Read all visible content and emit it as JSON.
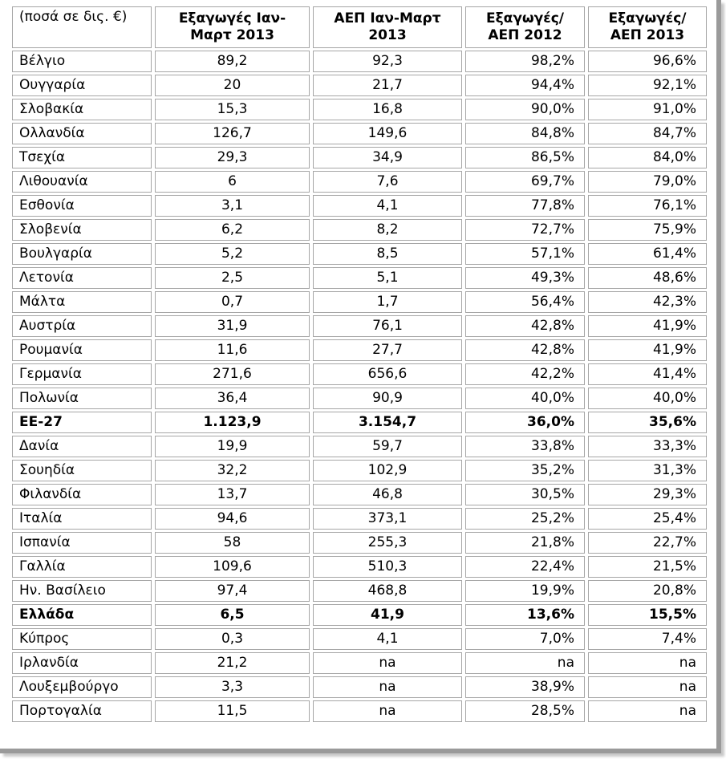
{
  "table": {
    "headers": [
      "(ποσά σε δις. €)",
      "Εξαγωγές Ιαν-Μαρτ 2013",
      "ΑΕΠ Ιαν-Μαρτ 2013",
      "Εξαγωγές/ ΑΕΠ 2012",
      "Εξαγωγές/ ΑΕΠ 2013"
    ],
    "rows": [
      {
        "name": "Βέλγιο",
        "exports": "89,2",
        "gdp": "92,3",
        "ratio2012": "98,2%",
        "ratio2013": "96,6%",
        "bold": false
      },
      {
        "name": "Ουγγαρία",
        "exports": "20",
        "gdp": "21,7",
        "ratio2012": "94,4%",
        "ratio2013": "92,1%",
        "bold": false
      },
      {
        "name": "Σλοβακία",
        "exports": "15,3",
        "gdp": "16,8",
        "ratio2012": "90,0%",
        "ratio2013": "91,0%",
        "bold": false
      },
      {
        "name": "Ολλανδία",
        "exports": "126,7",
        "gdp": "149,6",
        "ratio2012": "84,8%",
        "ratio2013": "84,7%",
        "bold": false
      },
      {
        "name": "Τσεχία",
        "exports": "29,3",
        "gdp": "34,9",
        "ratio2012": "86,5%",
        "ratio2013": "84,0%",
        "bold": false
      },
      {
        "name": "Λιθουανία",
        "exports": "6",
        "gdp": "7,6",
        "ratio2012": "69,7%",
        "ratio2013": "79,0%",
        "bold": false
      },
      {
        "name": "Εσθονία",
        "exports": "3,1",
        "gdp": "4,1",
        "ratio2012": "77,8%",
        "ratio2013": "76,1%",
        "bold": false
      },
      {
        "name": "Σλοβενία",
        "exports": "6,2",
        "gdp": "8,2",
        "ratio2012": "72,7%",
        "ratio2013": "75,9%",
        "bold": false
      },
      {
        "name": "Βουλγαρία",
        "exports": "5,2",
        "gdp": "8,5",
        "ratio2012": "57,1%",
        "ratio2013": "61,4%",
        "bold": false
      },
      {
        "name": "Λετονία",
        "exports": "2,5",
        "gdp": "5,1",
        "ratio2012": "49,3%",
        "ratio2013": "48,6%",
        "bold": false
      },
      {
        "name": "Μάλτα",
        "exports": "0,7",
        "gdp": "1,7",
        "ratio2012": "56,4%",
        "ratio2013": "42,3%",
        "bold": false
      },
      {
        "name": "Αυστρία",
        "exports": "31,9",
        "gdp": "76,1",
        "ratio2012": "42,8%",
        "ratio2013": "41,9%",
        "bold": false
      },
      {
        "name": "Ρουμανία",
        "exports": "11,6",
        "gdp": "27,7",
        "ratio2012": "42,8%",
        "ratio2013": "41,9%",
        "bold": false
      },
      {
        "name": "Γερμανία",
        "exports": "271,6",
        "gdp": "656,6",
        "ratio2012": "42,2%",
        "ratio2013": "41,4%",
        "bold": false
      },
      {
        "name": "Πολωνία",
        "exports": "36,4",
        "gdp": "90,9",
        "ratio2012": "40,0%",
        "ratio2013": "40,0%",
        "bold": false
      },
      {
        "name": "ΕΕ-27",
        "exports": "1.123,9",
        "gdp": "3.154,7",
        "ratio2012": "36,0%",
        "ratio2013": "35,6%",
        "bold": true
      },
      {
        "name": "Δανία",
        "exports": "19,9",
        "gdp": "59,7",
        "ratio2012": "33,8%",
        "ratio2013": "33,3%",
        "bold": false
      },
      {
        "name": "Σουηδία",
        "exports": "32,2",
        "gdp": "102,9",
        "ratio2012": "35,2%",
        "ratio2013": "31,3%",
        "bold": false
      },
      {
        "name": "Φιλανδία",
        "exports": "13,7",
        "gdp": "46,8",
        "ratio2012": "30,5%",
        "ratio2013": "29,3%",
        "bold": false
      },
      {
        "name": "Ιταλία",
        "exports": "94,6",
        "gdp": "373,1",
        "ratio2012": "25,2%",
        "ratio2013": "25,4%",
        "bold": false
      },
      {
        "name": "Ισπανία",
        "exports": "58",
        "gdp": "255,3",
        "ratio2012": "21,8%",
        "ratio2013": "22,7%",
        "bold": false
      },
      {
        "name": "Γαλλία",
        "exports": "109,6",
        "gdp": "510,3",
        "ratio2012": "22,4%",
        "ratio2013": "21,5%",
        "bold": false
      },
      {
        "name": "Ην. Βασίλειο",
        "exports": "97,4",
        "gdp": "468,8",
        "ratio2012": "19,9%",
        "ratio2013": "20,8%",
        "bold": false
      },
      {
        "name": "Ελλάδα",
        "exports": "6,5",
        "gdp": "41,9",
        "ratio2012": "13,6%",
        "ratio2013": "15,5%",
        "bold": true
      },
      {
        "name": "Κύπρος",
        "exports": "0,3",
        "gdp": "4,1",
        "ratio2012": "7,0%",
        "ratio2013": "7,4%",
        "bold": false
      },
      {
        "name": "Ιρλανδία",
        "exports": "21,2",
        "gdp": "na",
        "ratio2012": "na",
        "ratio2013": "na",
        "bold": false
      },
      {
        "name": "Λουξεμβούργο",
        "exports": "3,3",
        "gdp": "na",
        "ratio2012": "38,9%",
        "ratio2013": "na",
        "bold": false
      },
      {
        "name": "Πορτογαλία",
        "exports": "11,5",
        "gdp": "na",
        "ratio2012": "28,5%",
        "ratio2013": "na",
        "bold": false
      }
    ]
  }
}
